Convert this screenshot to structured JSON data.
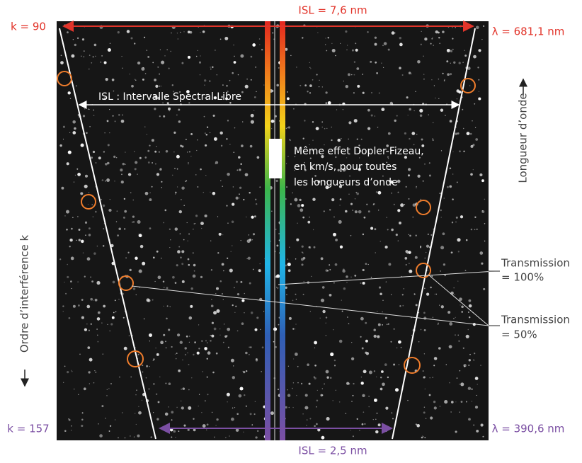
{
  "labels": {
    "isl_top": "ISL = 7,6 nm",
    "k_top": "k = 90",
    "lambda_top": "λ = 681,1 nm",
    "isl_caption": "ISL : Intervalle Spectral Libre",
    "doppler": [
      "Même effet Dopler-Fizeau,",
      "en km/s, pour toutes",
      "les longueurs d’onde"
    ],
    "wavelength_axis": "Longueur d’onde",
    "order_axis": "Ordre d’interférence k",
    "transmission_100": [
      "Transmission",
      "= 100%"
    ],
    "transmission_50": [
      "Transmission",
      "= 50%"
    ],
    "k_bottom": "k = 157",
    "lambda_bottom": "λ = 390,6 nm",
    "isl_bottom": "ISL = 2,5 nm"
  }
}
